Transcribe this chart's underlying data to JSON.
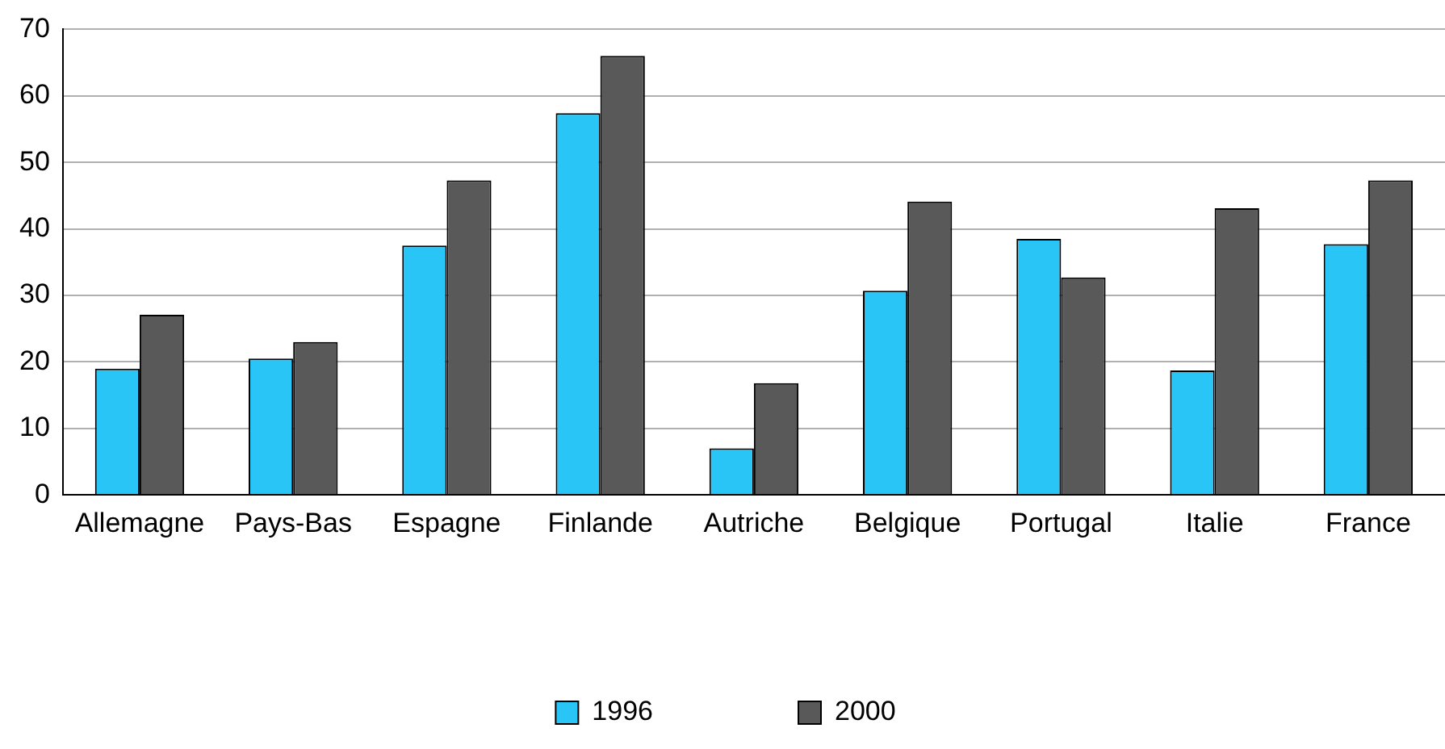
{
  "chart_data": {
    "type": "bar",
    "categories": [
      "Allemagne",
      "Pays-Bas",
      "Espagne",
      "Finlande",
      "Autriche",
      "Belgique",
      "Portugal",
      "Italie",
      "France"
    ],
    "series": [
      {
        "name": "1996",
        "color": "#29c5f6",
        "values": [
          19,
          20.5,
          37.5,
          57.4,
          7,
          30.7,
          38.5,
          18.7,
          37.7
        ]
      },
      {
        "name": "2000",
        "color": "#595959",
        "values": [
          27.1,
          23,
          47.3,
          66,
          16.8,
          44.1,
          32.7,
          43.1,
          47.3
        ]
      }
    ],
    "ylim": [
      0,
      70
    ],
    "yticks": [
      0,
      10,
      20,
      30,
      40,
      50,
      60,
      70
    ],
    "grid": "y",
    "legend": "bottom"
  }
}
